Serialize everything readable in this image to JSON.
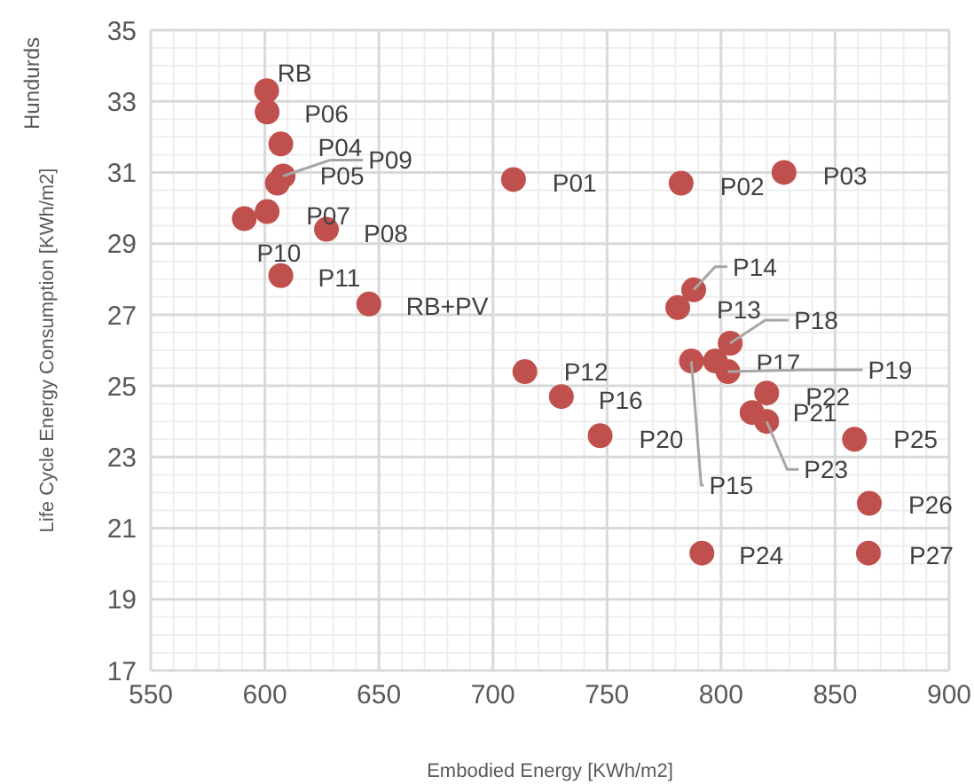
{
  "chart_data": {
    "type": "scatter",
    "xlabel": "Embodied Energy [KWh/m2]",
    "ylabel": "Life Cycle Energy Consumption [KWh/m2]",
    "x": [
      600.8,
      601,
      607,
      608,
      605.5,
      601,
      591,
      627,
      607,
      645.6,
      709,
      782.5,
      827.6,
      788,
      781,
      804,
      787,
      797.5,
      803,
      820,
      813.6,
      820,
      858.5,
      865,
      864.6,
      791.6,
      714,
      730,
      747
    ],
    "series": [
      {
        "color": "#c0504d",
        "values": [
          33.3,
          32.7,
          31.8,
          30.9,
          30.7,
          29.9,
          29.7,
          29.4,
          28.1,
          27.3,
          30.8,
          30.7,
          31.0,
          27.7,
          27.2,
          26.2,
          25.7,
          25.7,
          25.4,
          24.8,
          24.25,
          24.0,
          23.5,
          21.7,
          20.3,
          20.3,
          25.4,
          24.7,
          23.6
        ]
      }
    ],
    "xlim": [
      550,
      900
    ],
    "xticks": [
      550,
      600,
      650,
      700,
      750,
      800,
      850,
      900
    ],
    "ylim": [
      17,
      35
    ],
    "yticks": [
      17,
      19,
      21,
      23,
      25,
      27,
      29,
      31,
      33,
      35
    ],
    "grid": true,
    "legend": false,
    "marker": "circle",
    "annotations": [
      "Hundurds",
      {
        "text": "RB",
        "x": 600.8,
        "y": 33.3
      },
      {
        "text": "P06",
        "x": 601,
        "y": 32.7
      },
      {
        "text": "P04",
        "x": 607,
        "y": 31.8
      },
      {
        "text": "P09",
        "x": 608,
        "y": 30.9
      },
      {
        "text": "P05",
        "x": 605.5,
        "y": 30.7
      },
      {
        "text": "P07",
        "x": 601,
        "y": 29.9
      },
      {
        "text": "P10",
        "x": 591,
        "y": 29.7
      },
      {
        "text": "P08",
        "x": 627,
        "y": 29.4
      },
      {
        "text": "P11",
        "x": 607,
        "y": 28.1
      },
      {
        "text": "RB+PV",
        "x": 645.6,
        "y": 27.3
      },
      {
        "text": "P01",
        "x": 709,
        "y": 30.8
      },
      {
        "text": "P02",
        "x": 782.5,
        "y": 30.7
      },
      {
        "text": "P03",
        "x": 827.6,
        "y": 31.0
      },
      {
        "text": "P14",
        "x": 788,
        "y": 27.7
      },
      {
        "text": "P13",
        "x": 781,
        "y": 27.2
      },
      {
        "text": "P18",
        "x": 804,
        "y": 26.2
      },
      {
        "text": "P15",
        "x": 787,
        "y": 25.7
      },
      {
        "text": "P17",
        "x": 797.5,
        "y": 25.7
      },
      {
        "text": "P19",
        "x": 803,
        "y": 25.4
      },
      {
        "text": "P22",
        "x": 820,
        "y": 24.8
      },
      {
        "text": "P21",
        "x": 813.6,
        "y": 24.25
      },
      {
        "text": "P23",
        "x": 820,
        "y": 24.0
      },
      {
        "text": "P25",
        "x": 858.5,
        "y": 23.5
      },
      {
        "text": "P26",
        "x": 865,
        "y": 21.7
      },
      {
        "text": "P27",
        "x": 864.6,
        "y": 20.3
      },
      {
        "text": "P24",
        "x": 791.6,
        "y": 20.3
      },
      {
        "text": "P12",
        "x": 714,
        "y": 25.4
      },
      {
        "text": "P16",
        "x": 730,
        "y": 24.7
      },
      {
        "text": "P20",
        "x": 747,
        "y": 23.6
      }
    ]
  }
}
